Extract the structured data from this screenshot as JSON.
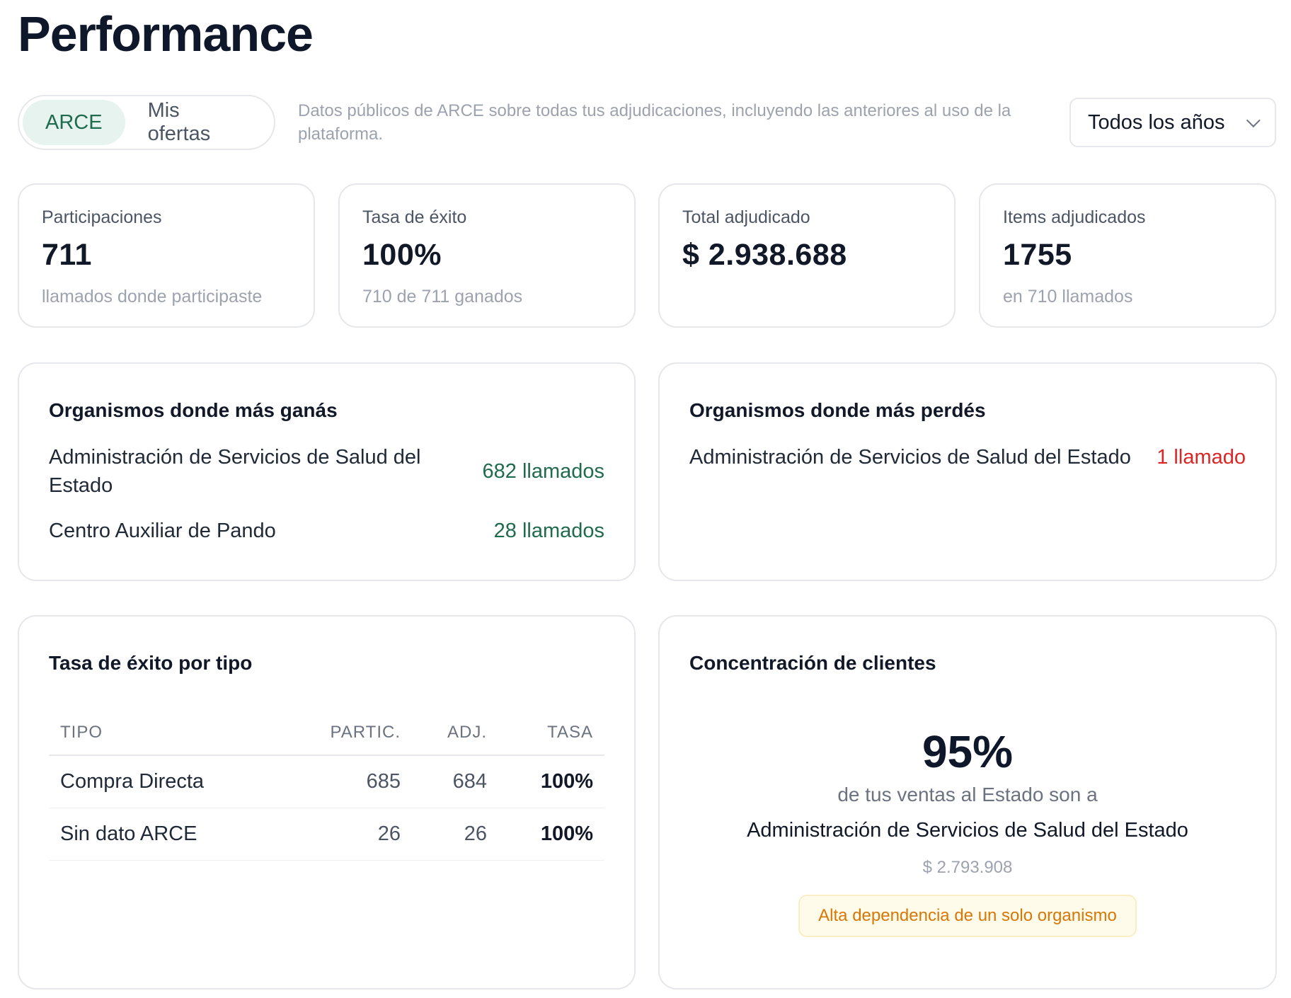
{
  "page": {
    "title": "Performance"
  },
  "toggle": {
    "options": [
      "ARCE",
      "Mis ofertas"
    ],
    "selected": "ARCE"
  },
  "info_text": "Datos públicos de ARCE sobre todas tus adjudicaciones, incluyendo las anteriores al uso de la plataforma.",
  "year_select": {
    "value": "Todos los años"
  },
  "stats": [
    {
      "label": "Participaciones",
      "value": "711",
      "sub": "llamados donde participaste"
    },
    {
      "label": "Tasa de éxito",
      "value": "100%",
      "sub": "710 de 711 ganados"
    },
    {
      "label": "Total adjudicado",
      "value": "$ 2.938.688",
      "sub": ""
    },
    {
      "label": "Items adjudicados",
      "value": "1755",
      "sub": "en 710 llamados"
    }
  ],
  "wins": {
    "title": "Organismos donde más ganás",
    "items": [
      {
        "name": "Administración de Servicios de Salud del Estado",
        "count": "682 llamados"
      },
      {
        "name": "Centro Auxiliar de Pando",
        "count": "28 llamados"
      }
    ]
  },
  "losses": {
    "title": "Organismos donde más perdés",
    "items": [
      {
        "name": "Administración de Servicios de Salud del Estado",
        "count": "1 llamado"
      }
    ]
  },
  "by_type": {
    "title": "Tasa de éxito por tipo",
    "headers": {
      "tipo": "TIPO",
      "partic": "PARTIC.",
      "adj": "ADJ.",
      "tasa": "TASA"
    },
    "rows": [
      {
        "tipo": "Compra Directa",
        "partic": "685",
        "adj": "684",
        "tasa": "100%"
      },
      {
        "tipo": "Sin dato ARCE",
        "partic": "26",
        "adj": "26",
        "tasa": "100%"
      }
    ]
  },
  "concentration": {
    "title": "Concentración de clientes",
    "percent": "95%",
    "text": "de tus ventas al Estado son a",
    "org": "Administración de Servicios de Salud del Estado",
    "amount": "$ 2.793.908",
    "badge": "Alta dependencia de un solo organismo"
  },
  "colors": {
    "accent_green": "#1f6b4d",
    "loss_red": "#dc2626",
    "warning": "#d97706"
  }
}
